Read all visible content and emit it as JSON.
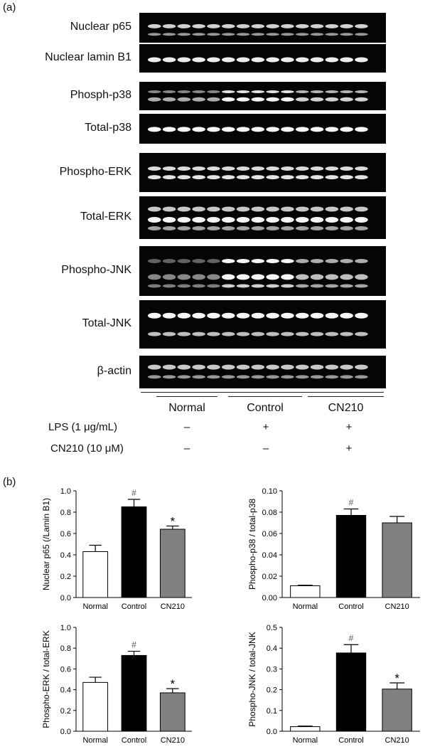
{
  "panel_a_letter": "(a)",
  "panel_b_letter": "(b)",
  "blots": [
    {
      "label": "Nuclear p65"
    },
    {
      "label": "Nuclear lamin B1"
    },
    {
      "label": "Phosph-p38"
    },
    {
      "label": "Total-p38"
    },
    {
      "label": "Phospho-ERK"
    },
    {
      "label": "Total-ERK"
    },
    {
      "label": "Phospho-JNK"
    },
    {
      "label": "Total-JNK"
    },
    {
      "label": "β-actin"
    }
  ],
  "groups": [
    "Normal",
    "Control",
    "CN210"
  ],
  "conditions": [
    {
      "label": "LPS (1 μg/mL)",
      "values": [
        "–",
        "+",
        "+"
      ]
    },
    {
      "label": "CN210 (10 μM)",
      "values": [
        "–",
        "–",
        "+"
      ]
    }
  ],
  "colors": {
    "normal": "#ffffff",
    "control": "#000000",
    "cn210": "#808080"
  },
  "chart_data": [
    {
      "type": "bar",
      "categories": [
        "Normal",
        "Control",
        "CN210"
      ],
      "values": [
        0.43,
        0.85,
        0.64
      ],
      "errors": [
        0.06,
        0.07,
        0.03
      ],
      "annotations": [
        "",
        "#",
        "*"
      ],
      "ylabel": "Nuclear p65 (/Lamin B1)",
      "ylim": [
        0,
        1.0
      ],
      "yticks": [
        "0.0",
        "0.2",
        "0.4",
        "0.6",
        "0.8",
        "1.0"
      ]
    },
    {
      "type": "bar",
      "categories": [
        "Normal",
        "Control",
        "CN210"
      ],
      "values": [
        0.011,
        0.077,
        0.07
      ],
      "errors": [
        0.0005,
        0.006,
        0.006
      ],
      "annotations": [
        "",
        "#",
        ""
      ],
      "ylabel": "Phospho-p38 / total-p38",
      "ylim": [
        0,
        0.1
      ],
      "yticks": [
        "0.00",
        "0.02",
        "0.04",
        "0.06",
        "0.08",
        "0.10"
      ]
    },
    {
      "type": "bar",
      "categories": [
        "Normal",
        "Control",
        "CN210"
      ],
      "values": [
        0.47,
        0.73,
        0.37
      ],
      "errors": [
        0.05,
        0.04,
        0.04
      ],
      "annotations": [
        "",
        "#",
        "*"
      ],
      "ylabel": "Phospho-ERK / total-ERK",
      "ylim": [
        0,
        1.0
      ],
      "yticks": [
        "0.0",
        "0.2",
        "0.4",
        "0.6",
        "0.8",
        "1.0"
      ]
    },
    {
      "type": "bar",
      "categories": [
        "Normal",
        "Control",
        "CN210"
      ],
      "values": [
        0.022,
        0.377,
        0.203
      ],
      "errors": [
        0.003,
        0.04,
        0.03
      ],
      "annotations": [
        "",
        "#",
        "*"
      ],
      "ylabel": "Phospho-JNK / total-JNK",
      "ylim": [
        0,
        0.5
      ],
      "yticks": [
        "0.0",
        "0.1",
        "0.2",
        "0.3",
        "0.4",
        "0.5"
      ]
    }
  ]
}
